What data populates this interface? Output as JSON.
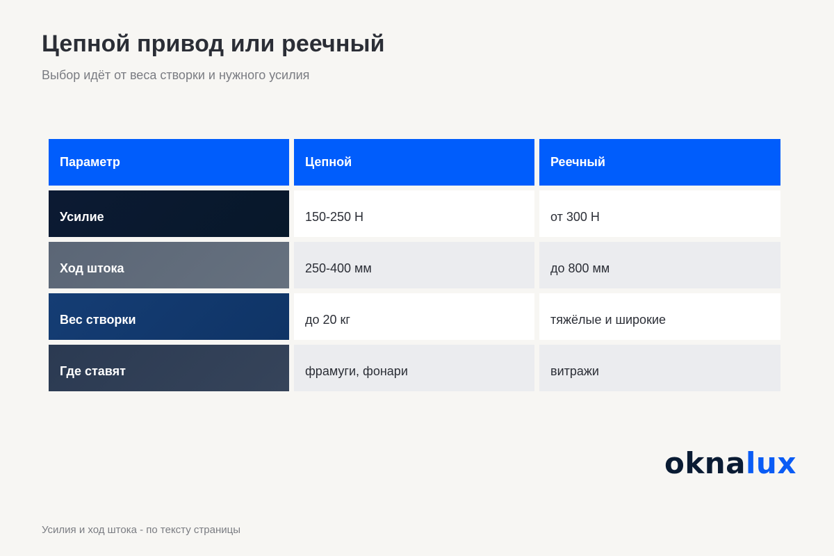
{
  "header": {
    "title": "Цепной привод или реечный",
    "subtitle": "Выбор идёт от веса створки и нужного усилия"
  },
  "table": {
    "headers": [
      "Параметр",
      "Цепной",
      "Реечный"
    ],
    "rows": [
      {
        "label": "Усилие",
        "chain": "150-250 Н",
        "rack": "от 300 Н"
      },
      {
        "label": "Ход штока",
        "chain": "250-400 мм",
        "rack": "до 800 мм"
      },
      {
        "label": "Вес створки",
        "chain": "до 20 кг",
        "rack": "тяжёлые и широкие"
      },
      {
        "label": "Где ставят",
        "chain": "фрамуги, фонари",
        "rack": "витражи"
      }
    ]
  },
  "logo": {
    "part1": "okna",
    "part2": "lux"
  },
  "footnote": "Усилия и ход штока - по тексту страницы",
  "colors": {
    "accent": "#005dfc",
    "background": "#f7f6f3",
    "logo_dark": "#0a1b33",
    "logo_blue": "#0a5cf5"
  }
}
